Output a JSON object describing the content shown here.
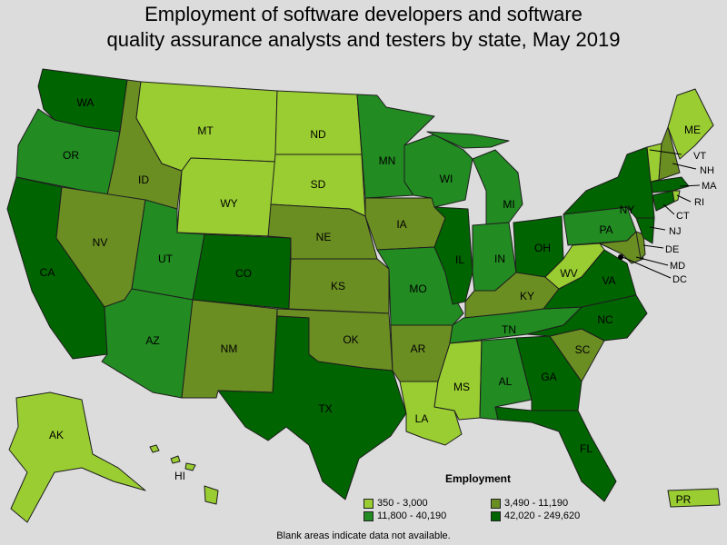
{
  "title_line1": "Employment of software developers and software",
  "title_line2": "quality assurance analysts and testers by state, May 2019",
  "legend": {
    "title": "Employment",
    "items": [
      {
        "label": "350 - 3,000",
        "color": "#9acd32"
      },
      {
        "label": "3,490 - 11,190",
        "color": "#6b8e23"
      },
      {
        "label": "11,800 - 40,190",
        "color": "#228b22"
      },
      {
        "label": "42,020 - 249,620",
        "color": "#006400"
      }
    ]
  },
  "note": "Blank areas indicate data not available.",
  "states": {
    "WA": "WA",
    "OR": "OR",
    "CA": "CA",
    "ID": "ID",
    "NV": "NV",
    "MT": "MT",
    "WY": "WY",
    "UT": "UT",
    "AZ": "AZ",
    "CO": "CO",
    "NM": "NM",
    "ND": "ND",
    "SD": "SD",
    "NE": "NE",
    "KS": "KS",
    "OK": "OK",
    "TX": "TX",
    "MN": "MN",
    "IA": "IA",
    "MO": "MO",
    "AR": "AR",
    "LA": "LA",
    "WI": "WI",
    "IL": "IL",
    "MI": "MI",
    "IN": "IN",
    "OH": "OH",
    "KY": "KY",
    "TN": "TN",
    "MS": "MS",
    "AL": "AL",
    "GA": "GA",
    "FL": "FL",
    "SC": "SC",
    "NC": "NC",
    "VA": "VA",
    "WV": "WV",
    "PA": "PA",
    "NY": "NY",
    "ME": "ME",
    "VT": "VT",
    "NH": "NH",
    "MA": "MA",
    "RI": "RI",
    "CT": "CT",
    "NJ": "NJ",
    "DE": "DE",
    "MD": "MD",
    "DC": "DC",
    "AK": "AK",
    "HI": "HI",
    "PR": "PR"
  }
}
